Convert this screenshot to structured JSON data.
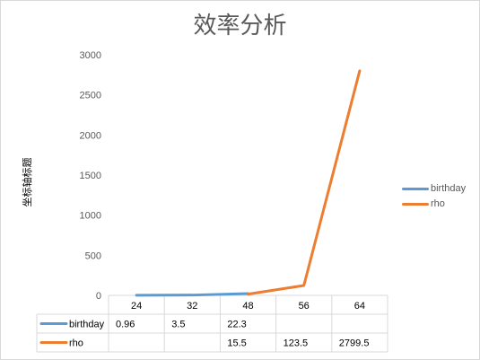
{
  "chart_data": {
    "type": "line",
    "title": "效率分析",
    "ylabel": "坐标轴标题",
    "ylim": [
      0,
      3000
    ],
    "yticks": [
      0,
      500,
      1000,
      1500,
      2000,
      2500,
      3000
    ],
    "categories": [
      "24",
      "32",
      "48",
      "56",
      "64"
    ],
    "series": [
      {
        "name": "birthday",
        "color": "#5b9bd5",
        "values": [
          0.96,
          3.5,
          22.3,
          null,
          null
        ]
      },
      {
        "name": "rho",
        "color": "#ed7d31",
        "values": [
          null,
          null,
          15.5,
          123.5,
          2799.5
        ]
      }
    ],
    "legend": "right",
    "data_table": true,
    "gridlines": false
  }
}
